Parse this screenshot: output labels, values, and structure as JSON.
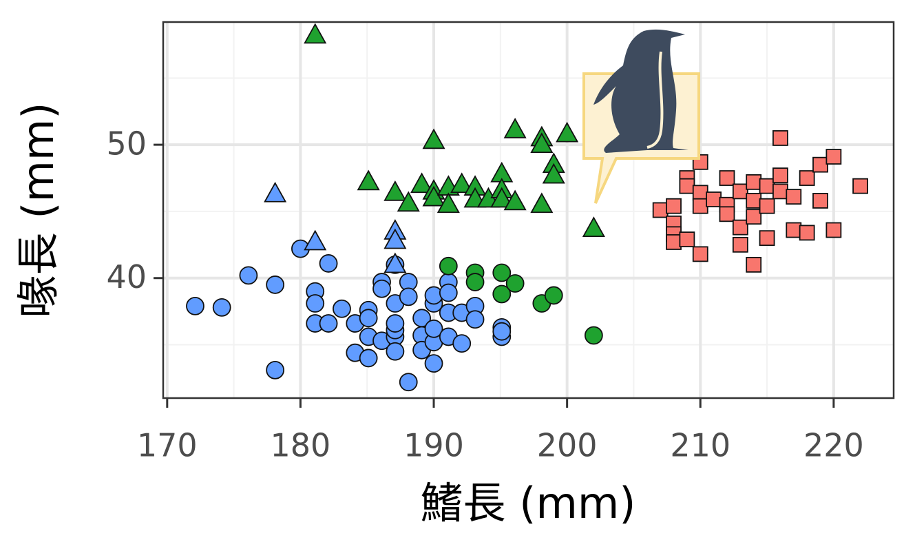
{
  "chart_data": {
    "type": "scatter",
    "x_label": "鰭長 (mm)",
    "y_label": "喙長 (mm)",
    "xlim": [
      169.7,
      224.5
    ],
    "ylim": [
      31.0,
      59.2
    ],
    "xticks": [
      170,
      180,
      190,
      200,
      210,
      220
    ],
    "yticks": [
      40,
      50
    ],
    "grid": true,
    "series": [
      {
        "color": "#619cff",
        "marker": "circle",
        "x": [
          172.1,
          174.1,
          176.1,
          178.1,
          178.1,
          180,
          182.1,
          181.1,
          181.1,
          181.1,
          182.1,
          183.1,
          184.1,
          184.1,
          185.1,
          185.1,
          185.1,
          185.1,
          186.1,
          186.1,
          186.1,
          187.1,
          187.1,
          187.1,
          187.1,
          187.1,
          187.1,
          188.1,
          188.1,
          188.1,
          189.1,
          189.1,
          189.1,
          190,
          190,
          190,
          190,
          190,
          191.1,
          191.1,
          191.1,
          191.1,
          192.1,
          192.1,
          193.1,
          193.1,
          195.1,
          195.1,
          195.1
        ],
        "y": [
          37.9,
          37.8,
          40.2,
          39.5,
          33.1,
          42.2,
          41.1,
          39.0,
          38.1,
          36.6,
          36.6,
          37.7,
          36.6,
          34.4,
          34.0,
          37.6,
          37.0,
          35.6,
          35.3,
          39.7,
          39.2,
          35.6,
          36.1,
          36.6,
          38.1,
          34.5,
          41.0,
          39.7,
          38.6,
          32.2,
          37.0,
          35.7,
          34.6,
          38.1,
          38.7,
          33.6,
          35.2,
          36.2,
          39.7,
          38.9,
          37.4,
          35.6,
          35.1,
          37.4,
          37.9,
          36.9,
          36.3,
          35.6,
          36.0
        ]
      },
      {
        "color": "#619cff",
        "marker": "triangle",
        "x": [
          178.1,
          181.1,
          187.1,
          187.1,
          187.1
        ],
        "y": [
          46.3,
          42.7,
          43.5,
          42.8,
          41.0
        ]
      },
      {
        "color": "#1fa22f",
        "marker": "triangle",
        "x": [
          181.1,
          185.1,
          187.1,
          188.1,
          189.1,
          190,
          190,
          190,
          191.1,
          191.1,
          192.1,
          193.1,
          193.1,
          194.1,
          195.1,
          195.1,
          195.1,
          196.1,
          196.1,
          198.1,
          198.1,
          198.1,
          199,
          199,
          200,
          202
        ],
        "y": [
          58.2,
          47.2,
          46.4,
          45.6,
          47.0,
          50.3,
          46.5,
          46.0,
          46.8,
          45.5,
          47.0,
          46.8,
          45.9,
          45.9,
          47.8,
          46.6,
          45.9,
          45.7,
          51.1,
          50.5,
          50.0,
          45.5,
          48.5,
          47.7,
          50.8,
          43.7
        ]
      },
      {
        "color": "#1fa22f",
        "marker": "circle",
        "x": [
          191.1,
          193.1,
          193.1,
          195.1,
          195.1,
          196.1,
          198.1,
          199,
          202
        ],
        "y": [
          40.9,
          40.4,
          39.7,
          40.4,
          38.8,
          39.6,
          38.1,
          38.7,
          35.7
        ]
      },
      {
        "color": "#f8766d",
        "marker": "square",
        "x": [
          207,
          208,
          208,
          208,
          208,
          209,
          209,
          209,
          210,
          210,
          210,
          210,
          211,
          212,
          212,
          212,
          213,
          213,
          213,
          214,
          214,
          214,
          214,
          215,
          215,
          215,
          216,
          216,
          216,
          217,
          217,
          218,
          218,
          219,
          219,
          220,
          220,
          222
        ],
        "y": [
          45.1,
          45.4,
          44.1,
          43.3,
          42.7,
          47.5,
          46.9,
          42.9,
          48.7,
          46.4,
          45.4,
          41.8,
          45.9,
          47.5,
          45.5,
          44.8,
          46.5,
          43.8,
          42.5,
          47.2,
          45.8,
          44.6,
          41.0,
          46.9,
          45.4,
          43.0,
          50.5,
          47.7,
          46.5,
          46.1,
          43.6,
          47.5,
          43.4,
          48.5,
          45.8,
          49.1,
          43.6,
          46.9
        ]
      }
    ]
  }
}
